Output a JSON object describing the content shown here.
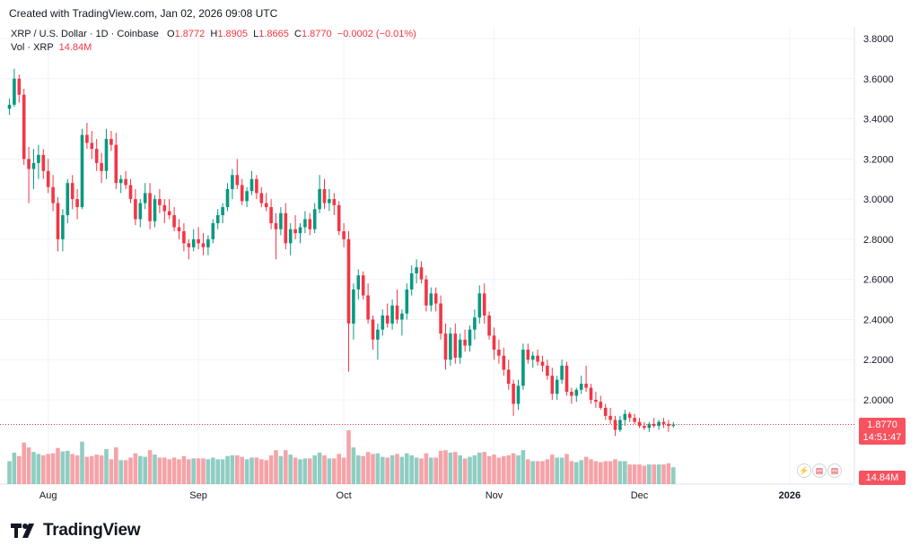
{
  "caption": "Created with TradingView.com, Jan 02, 2026 09:08 UTC",
  "legend": {
    "symbol": "XRP / U.S. Dollar · 1D · Coinbase",
    "o_label": "O",
    "o": "1.8772",
    "h_label": "H",
    "h": "1.8905",
    "l_label": "L",
    "l": "1.8665",
    "c_label": "C",
    "c": "1.8770",
    "change": "−0.0002 (−0.01%)",
    "vol_label": "Vol · XRP",
    "vol": "14.84M"
  },
  "brand": "TradingView",
  "colors": {
    "up": "#089981",
    "down": "#f23645",
    "vol_up": "#8fcdc2",
    "vol_down": "#f5a3a8",
    "grid": "#f0f3fa"
  },
  "price_tag": {
    "price": "1.8770",
    "countdown": "14:51:47"
  },
  "volume_tag": "14.84M",
  "chart_data": {
    "type": "candlestick",
    "y_ticks": [
      "3.8000",
      "3.6000",
      "3.4000",
      "3.2000",
      "3.0000",
      "2.8000",
      "2.6000",
      "2.4000",
      "2.2000",
      "2.0000"
    ],
    "y_range": [
      1.97,
      3.84
    ],
    "x_ticks": [
      "Aug",
      "Sep",
      "Oct",
      "Nov",
      "Dec",
      "2026"
    ],
    "x_tick_days": [
      8,
      39,
      69,
      100,
      130,
      161
    ],
    "last_price": 1.877,
    "ohlc": [
      [
        3.45,
        3.5,
        3.42,
        3.47
      ],
      [
        3.47,
        3.65,
        3.46,
        3.6
      ],
      [
        3.6,
        3.62,
        3.48,
        3.52
      ],
      [
        3.52,
        3.55,
        3.17,
        3.2
      ],
      [
        3.2,
        3.26,
        2.98,
        3.15
      ],
      [
        3.15,
        3.25,
        3.05,
        3.18
      ],
      [
        3.18,
        3.27,
        3.1,
        3.22
      ],
      [
        3.22,
        3.25,
        3.1,
        3.14
      ],
      [
        3.14,
        3.2,
        3.03,
        3.06
      ],
      [
        3.06,
        3.12,
        2.94,
        2.98
      ],
      [
        2.98,
        3.01,
        2.74,
        2.8
      ],
      [
        2.8,
        2.95,
        2.74,
        2.92
      ],
      [
        2.92,
        3.1,
        2.88,
        3.08
      ],
      [
        3.08,
        3.12,
        2.95,
        3.0
      ],
      [
        3.0,
        3.05,
        2.9,
        2.96
      ],
      [
        2.96,
        3.35,
        2.95,
        3.32
      ],
      [
        3.32,
        3.38,
        3.25,
        3.28
      ],
      [
        3.28,
        3.34,
        3.2,
        3.25
      ],
      [
        3.25,
        3.3,
        3.14,
        3.18
      ],
      [
        3.18,
        3.23,
        3.08,
        3.14
      ],
      [
        3.14,
        3.35,
        3.1,
        3.3
      ],
      [
        3.3,
        3.34,
        3.24,
        3.27
      ],
      [
        3.27,
        3.33,
        3.05,
        3.08
      ],
      [
        3.08,
        3.12,
        3.03,
        3.1
      ],
      [
        3.1,
        3.14,
        3.05,
        3.07
      ],
      [
        3.07,
        3.1,
        2.98,
        3.0
      ],
      [
        3.0,
        3.05,
        2.87,
        2.9
      ],
      [
        2.9,
        3.0,
        2.86,
        2.98
      ],
      [
        2.98,
        3.08,
        2.95,
        3.03
      ],
      [
        3.03,
        3.08,
        2.85,
        2.89
      ],
      [
        2.89,
        3.02,
        2.86,
        3.0
      ],
      [
        3.0,
        3.05,
        2.93,
        2.97
      ],
      [
        2.97,
        3.0,
        2.88,
        2.94
      ],
      [
        2.94,
        3.0,
        2.9,
        2.92
      ],
      [
        2.92,
        2.96,
        2.84,
        2.86
      ],
      [
        2.86,
        2.9,
        2.8,
        2.84
      ],
      [
        2.84,
        2.88,
        2.74,
        2.78
      ],
      [
        2.78,
        2.8,
        2.7,
        2.76
      ],
      [
        2.76,
        2.85,
        2.74,
        2.8
      ],
      [
        2.8,
        2.86,
        2.75,
        2.78
      ],
      [
        2.78,
        2.83,
        2.72,
        2.76
      ],
      [
        2.76,
        2.82,
        2.72,
        2.8
      ],
      [
        2.8,
        2.9,
        2.78,
        2.88
      ],
      [
        2.88,
        2.95,
        2.85,
        2.92
      ],
      [
        2.92,
        2.98,
        2.88,
        2.96
      ],
      [
        2.96,
        3.08,
        2.94,
        3.05
      ],
      [
        3.05,
        3.15,
        3.0,
        3.12
      ],
      [
        3.12,
        3.2,
        3.05,
        3.07
      ],
      [
        3.07,
        3.1,
        2.97,
        2.99
      ],
      [
        2.99,
        3.06,
        2.96,
        3.04
      ],
      [
        3.04,
        3.14,
        3.02,
        3.1
      ],
      [
        3.1,
        3.12,
        3.0,
        3.03
      ],
      [
        3.03,
        3.06,
        2.96,
        2.98
      ],
      [
        2.98,
        3.03,
        2.94,
        2.96
      ],
      [
        2.96,
        3.0,
        2.85,
        2.88
      ],
      [
        2.88,
        2.93,
        2.7,
        2.85
      ],
      [
        2.85,
        2.96,
        2.82,
        2.93
      ],
      [
        2.93,
        2.98,
        2.75,
        2.78
      ],
      [
        2.78,
        2.88,
        2.72,
        2.85
      ],
      [
        2.85,
        2.92,
        2.8,
        2.83
      ],
      [
        2.83,
        2.88,
        2.78,
        2.86
      ],
      [
        2.86,
        2.94,
        2.83,
        2.9
      ],
      [
        2.9,
        2.93,
        2.82,
        2.85
      ],
      [
        2.85,
        2.98,
        2.83,
        2.95
      ],
      [
        2.95,
        3.12,
        2.93,
        3.05
      ],
      [
        3.05,
        3.1,
        2.95,
        2.98
      ],
      [
        2.98,
        3.05,
        2.94,
        3.0
      ],
      [
        3.0,
        3.03,
        2.92,
        2.97
      ],
      [
        2.97,
        2.99,
        2.82,
        2.84
      ],
      [
        2.84,
        2.88,
        2.76,
        2.8
      ],
      [
        2.8,
        2.84,
        2.14,
        2.38
      ],
      [
        2.38,
        2.58,
        2.3,
        2.55
      ],
      [
        2.55,
        2.65,
        2.5,
        2.62
      ],
      [
        2.62,
        2.64,
        2.5,
        2.52
      ],
      [
        2.52,
        2.58,
        2.38,
        2.4
      ],
      [
        2.4,
        2.42,
        2.25,
        2.3
      ],
      [
        2.3,
        2.38,
        2.2,
        2.35
      ],
      [
        2.35,
        2.45,
        2.32,
        2.42
      ],
      [
        2.42,
        2.48,
        2.36,
        2.38
      ],
      [
        2.38,
        2.5,
        2.35,
        2.47
      ],
      [
        2.47,
        2.55,
        2.38,
        2.4
      ],
      [
        2.4,
        2.45,
        2.32,
        2.43
      ],
      [
        2.43,
        2.58,
        2.4,
        2.55
      ],
      [
        2.55,
        2.67,
        2.52,
        2.63
      ],
      [
        2.63,
        2.7,
        2.58,
        2.66
      ],
      [
        2.66,
        2.69,
        2.58,
        2.6
      ],
      [
        2.6,
        2.62,
        2.44,
        2.47
      ],
      [
        2.47,
        2.56,
        2.44,
        2.53
      ],
      [
        2.53,
        2.56,
        2.44,
        2.48
      ],
      [
        2.48,
        2.52,
        2.3,
        2.33
      ],
      [
        2.33,
        2.38,
        2.15,
        2.2
      ],
      [
        2.2,
        2.36,
        2.17,
        2.33
      ],
      [
        2.33,
        2.38,
        2.18,
        2.21
      ],
      [
        2.21,
        2.33,
        2.18,
        2.3
      ],
      [
        2.3,
        2.35,
        2.24,
        2.27
      ],
      [
        2.27,
        2.37,
        2.24,
        2.35
      ],
      [
        2.35,
        2.45,
        2.3,
        2.41
      ],
      [
        2.41,
        2.57,
        2.38,
        2.53
      ],
      [
        2.53,
        2.58,
        2.38,
        2.42
      ],
      [
        2.42,
        2.44,
        2.3,
        2.32
      ],
      [
        2.32,
        2.36,
        2.2,
        2.25
      ],
      [
        2.25,
        2.3,
        2.18,
        2.22
      ],
      [
        2.22,
        2.26,
        2.12,
        2.15
      ],
      [
        2.15,
        2.2,
        2.05,
        2.08
      ],
      [
        2.08,
        2.1,
        1.92,
        1.98
      ],
      [
        1.98,
        2.1,
        1.95,
        2.07
      ],
      [
        2.07,
        2.28,
        2.05,
        2.25
      ],
      [
        2.25,
        2.28,
        2.18,
        2.2
      ],
      [
        2.2,
        2.24,
        2.16,
        2.22
      ],
      [
        2.22,
        2.25,
        2.17,
        2.19
      ],
      [
        2.19,
        2.22,
        2.14,
        2.17
      ],
      [
        2.17,
        2.2,
        2.1,
        2.12
      ],
      [
        2.12,
        2.16,
        2.0,
        2.03
      ],
      [
        2.03,
        2.12,
        2.0,
        2.1
      ],
      [
        2.1,
        2.2,
        2.08,
        2.17
      ],
      [
        2.17,
        2.19,
        2.02,
        2.04
      ],
      [
        2.04,
        2.06,
        1.98,
        2.02
      ],
      [
        2.02,
        2.06,
        1.99,
        2.05
      ],
      [
        2.05,
        2.12,
        2.03,
        2.08
      ],
      [
        2.08,
        2.17,
        2.04,
        2.06
      ],
      [
        2.06,
        2.08,
        1.98,
        2.0
      ],
      [
        2.0,
        2.04,
        1.96,
        1.99
      ],
      [
        1.99,
        2.02,
        1.95,
        1.96
      ],
      [
        1.96,
        1.98,
        1.9,
        1.92
      ],
      [
        1.92,
        1.96,
        1.88,
        1.9
      ],
      [
        1.9,
        1.92,
        1.82,
        1.85
      ],
      [
        1.85,
        1.92,
        1.84,
        1.9
      ],
      [
        1.9,
        1.95,
        1.87,
        1.93
      ],
      [
        1.93,
        1.94,
        1.89,
        1.91
      ],
      [
        1.91,
        1.93,
        1.88,
        1.89
      ],
      [
        1.89,
        1.91,
        1.86,
        1.87
      ],
      [
        1.87,
        1.89,
        1.85,
        1.86
      ],
      [
        1.86,
        1.89,
        1.84,
        1.88
      ],
      [
        1.88,
        1.91,
        1.86,
        1.87
      ],
      [
        1.87,
        1.9,
        1.85,
        1.89
      ],
      [
        1.89,
        1.91,
        1.86,
        1.88
      ],
      [
        1.88,
        1.9,
        1.84,
        1.87
      ],
      [
        1.87,
        1.89,
        1.86,
        1.877
      ]
    ]
  }
}
